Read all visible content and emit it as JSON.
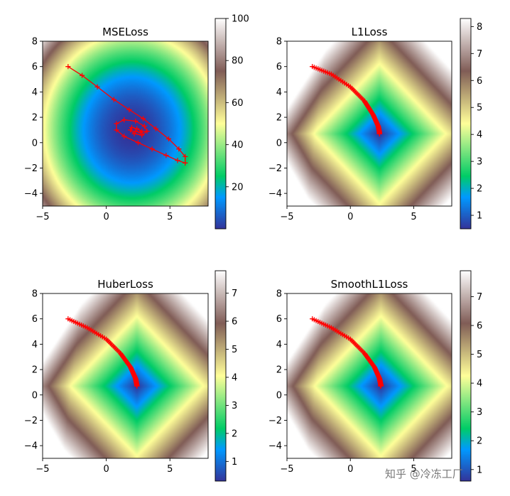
{
  "watermark": "知乎 @冷冻工厂",
  "colormap": {
    "name": "terrain",
    "stops": [
      "#333399",
      "#0099ff",
      "#00cc66",
      "#ffff99",
      "#805c56",
      "#ffffff"
    ]
  },
  "trajectory_color": "#ff0000",
  "chart_data": [
    {
      "type": "heatmap",
      "title": "MSELoss",
      "xlim": [
        -5,
        8
      ],
      "ylim": [
        -5,
        8
      ],
      "xticks": [
        -5,
        0,
        5
      ],
      "yticks": [
        -4,
        -2,
        0,
        2,
        4,
        6,
        8
      ],
      "colorbar": {
        "range": [
          0,
          100
        ],
        "ticks": [
          20,
          40,
          60,
          80,
          100
        ]
      },
      "minimum": [
        2,
        1
      ],
      "trajectory": {
        "style": "line-with-markers",
        "marker": "+",
        "x": [
          -3,
          -1.9,
          -0.7,
          0.6,
          1.8,
          2.9,
          3.9,
          4.9,
          5.7,
          6.2,
          6.2,
          5.6,
          4.7,
          3.6,
          2.5,
          1.4,
          0.8,
          0.8,
          1.4,
          2.3,
          3.0,
          3.2,
          2.8,
          2.2,
          1.9,
          2.0,
          2.4,
          2.8,
          2.7,
          2.3
        ],
        "y": [
          6.0,
          5.3,
          4.4,
          3.4,
          2.6,
          1.9,
          1.1,
          0.3,
          -0.5,
          -1.1,
          -1.6,
          -1.4,
          -1.0,
          -0.5,
          0.0,
          0.5,
          1.0,
          1.5,
          1.8,
          1.7,
          1.3,
          0.9,
          0.6,
          0.7,
          1.0,
          1.2,
          1.1,
          0.9,
          0.8,
          0.9
        ]
      }
    },
    {
      "type": "heatmap",
      "title": "L1Loss",
      "xlim": [
        -5,
        8
      ],
      "ylim": [
        -5,
        8
      ],
      "xticks": [
        -5,
        0,
        5
      ],
      "yticks": [
        -4,
        -2,
        0,
        2,
        4,
        6,
        8
      ],
      "colorbar": {
        "range": [
          0.5,
          8.3
        ],
        "ticks": [
          1,
          2,
          3,
          4,
          5,
          6,
          7,
          8
        ]
      },
      "minimum": [
        2.3,
        0.7
      ],
      "trajectory": {
        "style": "dense-markers",
        "marker": "+",
        "x": [
          -3,
          -1.5,
          0,
          1.1,
          1.8,
          2.2,
          2.3,
          2.3
        ],
        "y": [
          6.0,
          5.4,
          4.4,
          3.3,
          2.2,
          1.3,
          0.8,
          0.7
        ]
      }
    },
    {
      "type": "heatmap",
      "title": "HuberLoss",
      "xlim": [
        -5,
        8
      ],
      "ylim": [
        -5,
        8
      ],
      "xticks": [
        -5,
        0,
        5
      ],
      "yticks": [
        -4,
        -2,
        0,
        2,
        4,
        6,
        8
      ],
      "colorbar": {
        "range": [
          0.3,
          7.8
        ],
        "ticks": [
          1,
          2,
          3,
          4,
          5,
          6,
          7
        ]
      },
      "minimum": [
        2.4,
        0.7
      ],
      "trajectory": {
        "style": "dense-markers",
        "marker": "+",
        "x": [
          -3,
          -1.5,
          0,
          1.1,
          1.9,
          2.3,
          2.4,
          2.4
        ],
        "y": [
          6.0,
          5.3,
          4.4,
          3.3,
          2.2,
          1.3,
          0.8,
          0.7
        ]
      }
    },
    {
      "type": "heatmap",
      "title": "SmoothL1Loss",
      "xlim": [
        -5,
        8
      ],
      "ylim": [
        -5,
        8
      ],
      "xticks": [
        -5,
        0,
        5
      ],
      "yticks": [
        -4,
        -2,
        0,
        2,
        4,
        6,
        8
      ],
      "colorbar": {
        "range": [
          0.6,
          7.9
        ],
        "ticks": [
          1,
          2,
          3,
          4,
          5,
          6,
          7
        ]
      },
      "minimum": [
        2.4,
        0.7
      ],
      "trajectory": {
        "style": "dense-markers",
        "marker": "+",
        "x": [
          -3,
          -1.5,
          0,
          1.1,
          1.9,
          2.3,
          2.4,
          2.4
        ],
        "y": [
          6.0,
          5.3,
          4.4,
          3.3,
          2.2,
          1.3,
          0.8,
          0.7
        ]
      }
    }
  ]
}
